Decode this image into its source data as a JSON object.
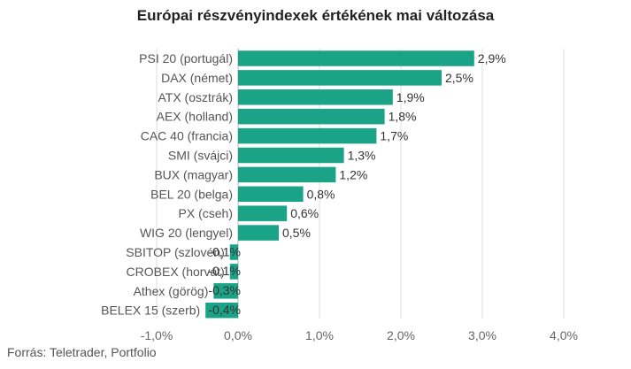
{
  "chart_data": {
    "type": "bar",
    "orientation": "horizontal",
    "title": "Európai részvényindexek értékének mai változása",
    "categories": [
      "PSI 20 (portugál)",
      "DAX (német)",
      "ATX (osztrák)",
      "AEX (holland)",
      "CAC 40 (francia)",
      "SMI (svájci)",
      "BUX (magyar)",
      "BEL 20 (belga)",
      "PX (cseh)",
      "WIG 20 (lengyel)",
      "SBITOP (szlovén)",
      "CROBEX (horvát)",
      "Athex (görög)",
      "BELEX 15 (szerb)"
    ],
    "values": [
      2.9,
      2.5,
      1.9,
      1.8,
      1.7,
      1.3,
      1.2,
      0.8,
      0.6,
      0.5,
      -0.1,
      -0.1,
      -0.3,
      -0.4
    ],
    "value_labels": [
      "2,9%",
      "2,5%",
      "1,9%",
      "1,8%",
      "1,7%",
      "1,3%",
      "1,2%",
      "0,8%",
      "0,6%",
      "0,5%",
      "-0,1%",
      "-0,1%",
      "-0,3%",
      "-0,4%"
    ],
    "xlim": [
      -1.0,
      4.0
    ],
    "x_ticks": [
      -1.0,
      0.0,
      1.0,
      2.0,
      3.0,
      4.0
    ],
    "x_tick_labels": [
      "-1,0%",
      "0,0%",
      "1,0%",
      "2,0%",
      "3,0%",
      "4,0%"
    ],
    "grid": true,
    "bar_color": "#1aa386",
    "source": "Forrás: Teletrader, Portfolio"
  }
}
